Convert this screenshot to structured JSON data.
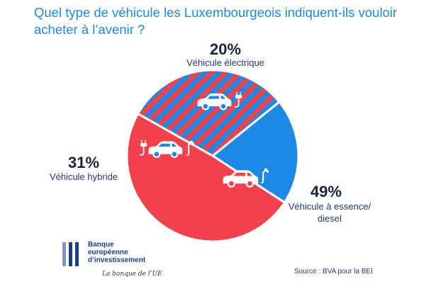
{
  "title": "Quel type de véhicule les Luxembourgeois indiquent-ils vouloir acheter à l’avenir ?",
  "labels": {
    "electric_pct": "20%",
    "electric_name": "Véhicule électrique",
    "hybrid_pct": "31%",
    "hybrid_name": "Véhicule hybride",
    "fuel_pct": "49%",
    "fuel_name_line1": "Véhicule à essence/",
    "fuel_name_line2": "diesel"
  },
  "logo": {
    "line1": "Banque",
    "line2": "européenne",
    "line3": "d’investissement",
    "slogan": "La banque de l’UE"
  },
  "source": "Source : BVA pour la BEI",
  "colors": {
    "blue": "#1e88e5",
    "red": "#f0414c"
  },
  "icons": [
    "car-icon",
    "charging-plug-icon",
    "fuel-pump-icon"
  ],
  "chart_data": {
    "type": "pie",
    "slices": [
      {
        "label": "Véhicule électrique",
        "value": 20,
        "color": "#1e88e5",
        "pattern": "solid"
      },
      {
        "label": "Véhicule à essence/diesel",
        "value": 49,
        "color": "#f0414c",
        "pattern": "solid"
      },
      {
        "label": "Véhicule hybride",
        "value": 31,
        "color": "#f0414c",
        "pattern": "blue-red-stripes"
      }
    ]
  }
}
